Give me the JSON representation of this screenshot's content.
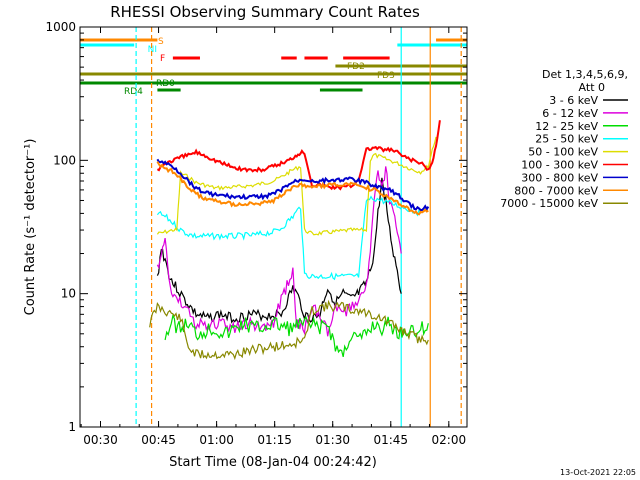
{
  "chart_data": {
    "type": "line",
    "title": "RHESSI Observing Summary Count Rates",
    "xlabel": "Start Time (08-Jan-04 00:24:42)",
    "ylabel": "Count Rate (s⁻¹ detector⁻¹)",
    "yscale": "log",
    "ylim": [
      1,
      1000
    ],
    "xlim_minutes": [
      0,
      100
    ],
    "x_ticks": [
      "00:30",
      "00:45",
      "01:00",
      "01:15",
      "01:30",
      "01:45",
      "02:00"
    ],
    "y_ticks": [
      "1",
      "10",
      "100",
      "1000"
    ],
    "footer_date": "13-Oct-2021 22:05",
    "legend": {
      "header": [
        "Det 1,3,4,5,6,9,",
        "Att 0"
      ],
      "position": "right",
      "entries": [
        {
          "label": "3 - 6 keV",
          "color": "#000000"
        },
        {
          "label": "6 - 12 keV",
          "color": "#dd00dd"
        },
        {
          "label": "12 - 25 keV",
          "color": "#00dd00"
        },
        {
          "label": "25 - 50 keV",
          "color": "#00ffff"
        },
        {
          "label": "50 - 100 keV",
          "color": "#dddd00"
        },
        {
          "label": "100 - 300 keV",
          "color": "#ff0000"
        },
        {
          "label": "300 - 800 keV",
          "color": "#0000cc"
        },
        {
          "label": "800 - 7000 keV",
          "color": "#ff8800"
        },
        {
          "label": "7000 - 15000 keV",
          "color": "#888800"
        }
      ]
    },
    "flags": [
      {
        "label": "S",
        "color": "#ff8800",
        "segments": [
          [
            0,
            20
          ],
          [
            92,
            100
          ]
        ]
      },
      {
        "label": "NI",
        "color": "#00ffff",
        "segments": [
          [
            0,
            14
          ],
          [
            82,
            100
          ]
        ]
      },
      {
        "label": "F",
        "color": "#ff0000",
        "segments": [
          [
            24,
            31
          ],
          [
            52,
            56
          ],
          [
            58,
            64
          ],
          [
            68,
            80
          ]
        ]
      },
      {
        "label": "FD2",
        "color": "#888800",
        "segments": [
          [
            66,
            100
          ]
        ]
      },
      {
        "label": "FD3",
        "color": "#888800",
        "segments": [
          [
            0,
            100
          ]
        ]
      },
      {
        "label": "RD0",
        "color": "#008800",
        "segments": [
          [
            0,
            100
          ]
        ]
      },
      {
        "label": "RD4",
        "color": "#008800",
        "segments": [
          [
            20,
            26
          ],
          [
            62,
            73
          ]
        ]
      }
    ],
    "vertical_lines": [
      {
        "x": 14.5,
        "color": "#00ffff",
        "style": "dashed"
      },
      {
        "x": 18.5,
        "color": "#ff8800",
        "style": "dashed"
      },
      {
        "x": 83,
        "color": "#00ffff",
        "style": "solid"
      },
      {
        "x": 90.5,
        "color": "#ff8800",
        "style": "solid"
      },
      {
        "x": 98.5,
        "color": "#ff8800",
        "style": "dashed"
      }
    ],
    "series": [
      {
        "name": "3 - 6 keV",
        "color": "#000000",
        "x": [
          20,
          21,
          22,
          23,
          24,
          25,
          27,
          30,
          33,
          36,
          40,
          44,
          48,
          52,
          55,
          56,
          58,
          60,
          62,
          63,
          64,
          66,
          68,
          70,
          71,
          72,
          73,
          74,
          75,
          76,
          77,
          78,
          79,
          80,
          81,
          82,
          83
        ],
        "y": [
          13,
          22,
          18,
          14,
          12,
          11,
          9,
          7,
          6.5,
          7,
          6.5,
          7,
          6.8,
          7,
          11,
          10,
          7,
          6.5,
          7,
          9,
          11,
          8.5,
          10,
          9,
          9.5,
          10,
          11,
          12,
          15,
          20,
          40,
          70,
          50,
          30,
          20,
          15,
          10
        ]
      },
      {
        "name": "6 - 12 keV",
        "color": "#dd00dd",
        "x": [
          20,
          21,
          22,
          23,
          24,
          25,
          27,
          30,
          33,
          36,
          40,
          44,
          48,
          50,
          52,
          55,
          56,
          58,
          60,
          62,
          64,
          66,
          68,
          70,
          72,
          74,
          75,
          76,
          77,
          78,
          79,
          80,
          81,
          82,
          83
        ],
        "y": [
          15,
          20,
          25,
          13,
          10,
          9,
          8,
          6,
          5.5,
          6,
          5.5,
          6,
          5.5,
          6,
          9,
          15,
          6,
          5.5,
          8,
          7,
          5,
          8,
          7,
          8,
          9,
          12,
          20,
          50,
          80,
          60,
          90,
          50,
          40,
          30,
          20
        ]
      },
      {
        "name": "12 - 25 keV",
        "color": "#00dd00",
        "x": [
          22,
          24,
          26,
          28,
          30,
          34,
          38,
          42,
          46,
          50,
          54,
          58,
          62,
          64,
          66,
          68,
          70,
          72,
          74,
          76,
          78,
          80,
          82,
          84,
          86,
          88,
          90
        ],
        "y": [
          5,
          6,
          5.5,
          6,
          5,
          5.5,
          5,
          6,
          5.5,
          6,
          5.5,
          6,
          5.5,
          6,
          4,
          3.5,
          5,
          4.5,
          5,
          6,
          5.5,
          6,
          5,
          5.5,
          5,
          5.5,
          6
        ]
      },
      {
        "name": "25 - 50 keV",
        "color": "#00ffff",
        "x": [
          20,
          22,
          24,
          26,
          28,
          30,
          35,
          40,
          45,
          50,
          52,
          55,
          57,
          58,
          60,
          65,
          70,
          72,
          74,
          76,
          78,
          80,
          82,
          84,
          86,
          88
        ],
        "y": [
          40,
          38,
          34,
          30,
          28,
          27,
          27,
          27,
          27.5,
          29,
          31,
          38,
          45,
          14,
          13.5,
          13.5,
          13.5,
          13.5,
          50,
          52,
          50,
          48,
          46,
          44,
          42,
          40
        ]
      },
      {
        "name": "50 - 100 keV",
        "color": "#dddd00",
        "x": [
          20,
          22,
          24,
          25,
          26,
          28,
          30,
          35,
          40,
          45,
          50,
          52,
          55,
          57,
          58,
          60,
          65,
          70,
          74,
          75,
          76,
          78,
          80,
          82,
          84,
          86,
          88,
          90,
          91,
          92
        ],
        "y": [
          28,
          29,
          30,
          30,
          80,
          75,
          68,
          62,
          63,
          65,
          70,
          75,
          85,
          90,
          30,
          28,
          29,
          30,
          30,
          100,
          110,
          105,
          100,
          95,
          90,
          85,
          82,
          90,
          120,
          150
        ]
      },
      {
        "name": "100 - 300 keV",
        "color": "#ff0000",
        "x": [
          20,
          22,
          24,
          26,
          28,
          30,
          32,
          35,
          38,
          40,
          42,
          45,
          48,
          50,
          52,
          54,
          55,
          56,
          57,
          58,
          60,
          62,
          65,
          68,
          70,
          72,
          74,
          76,
          78,
          80,
          82,
          84,
          86,
          88,
          90,
          91,
          92,
          93
        ],
        "y": [
          85,
          95,
          100,
          105,
          110,
          115,
          110,
          100,
          92,
          88,
          86,
          84,
          86,
          90,
          95,
          100,
          105,
          110,
          115,
          115,
          65,
          65,
          63,
          63,
          64,
          72,
          120,
          125,
          120,
          120,
          115,
          105,
          100,
          95,
          85,
          95,
          130,
          200
        ]
      },
      {
        "name": "300 - 800 keV",
        "color": "#0000cc",
        "x": [
          20,
          22,
          24,
          26,
          28,
          30,
          32,
          35,
          38,
          40,
          45,
          48,
          50,
          52,
          54,
          56,
          58,
          60,
          62,
          65,
          68,
          70,
          72,
          74,
          76,
          78,
          80,
          82,
          84,
          86,
          88,
          90
        ],
        "y": [
          100,
          95,
          90,
          80,
          70,
          62,
          58,
          55,
          54,
          53,
          53,
          54,
          56,
          60,
          66,
          70,
          72,
          70,
          70,
          71,
          72,
          72,
          70,
          68,
          65,
          62,
          60,
          55,
          50,
          45,
          42,
          45
        ]
      },
      {
        "name": "800 - 7000 keV",
        "color": "#ff8800",
        "x": [
          20,
          22,
          24,
          26,
          28,
          30,
          32,
          35,
          38,
          40,
          45,
          48,
          50,
          52,
          54,
          56,
          58,
          60,
          62,
          65,
          68,
          70,
          72,
          74,
          76,
          78,
          80,
          82,
          84,
          86,
          88,
          90
        ],
        "y": [
          95,
          88,
          82,
          72,
          62,
          56,
          52,
          50,
          48,
          47,
          47,
          48,
          50,
          54,
          60,
          64,
          65,
          64,
          64,
          65,
          66,
          66,
          64,
          62,
          60,
          56,
          52,
          48,
          45,
          42,
          40,
          42
        ]
      },
      {
        "name": "7000 - 15000 keV",
        "color": "#888800",
        "x": [
          18,
          20,
          22,
          24,
          26,
          28,
          30,
          35,
          40,
          45,
          50,
          55,
          58,
          60,
          62,
          65,
          68,
          70,
          72,
          75,
          78,
          80,
          82,
          85,
          88,
          90
        ],
        "y": [
          6,
          8,
          7.5,
          7,
          6.5,
          4,
          3.5,
          3.5,
          3.5,
          3.8,
          4,
          4.2,
          4.5,
          7.5,
          8,
          8,
          8,
          7.5,
          7.5,
          7,
          6.5,
          6,
          5.5,
          5,
          4.5,
          4.5
        ]
      }
    ]
  }
}
